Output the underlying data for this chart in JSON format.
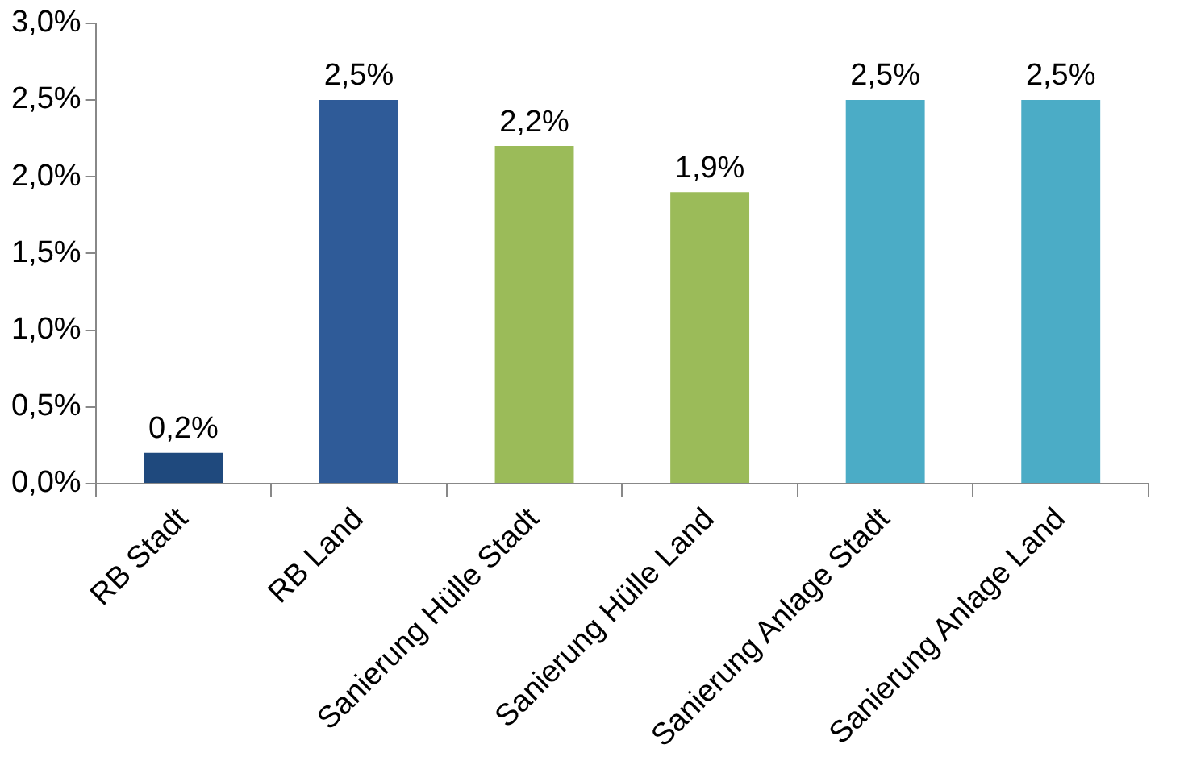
{
  "chart_data": {
    "type": "bar",
    "categories": [
      "RB Stadt",
      "RB Land",
      "Sanierung Hülle Stadt",
      "Sanierung Hülle Land",
      "Sanierung Anlage Stadt",
      "Sanierung Anlage Land"
    ],
    "values": [
      0.2,
      2.5,
      2.2,
      1.9,
      2.5,
      2.5
    ],
    "value_labels": [
      "0,2%",
      "2,5%",
      "2,2%",
      "1,9%",
      "2,5%",
      "2,5%"
    ],
    "colors": [
      "#1f497d",
      "#2f5b98",
      "#9bbb59",
      "#9bbb59",
      "#4bacc6",
      "#4bacc6"
    ],
    "ylim": [
      0,
      3
    ],
    "yticks": [
      {
        "value": 0,
        "label": "0,0%"
      },
      {
        "value": 0.5,
        "label": "0,5%"
      },
      {
        "value": 1,
        "label": "1,0%"
      },
      {
        "value": 1.5,
        "label": "1,5%"
      },
      {
        "value": 2,
        "label": "2,0%"
      },
      {
        "value": 2.5,
        "label": "2,5%"
      },
      {
        "value": 3,
        "label": "3,0%"
      }
    ],
    "grid": false,
    "legend": false
  }
}
